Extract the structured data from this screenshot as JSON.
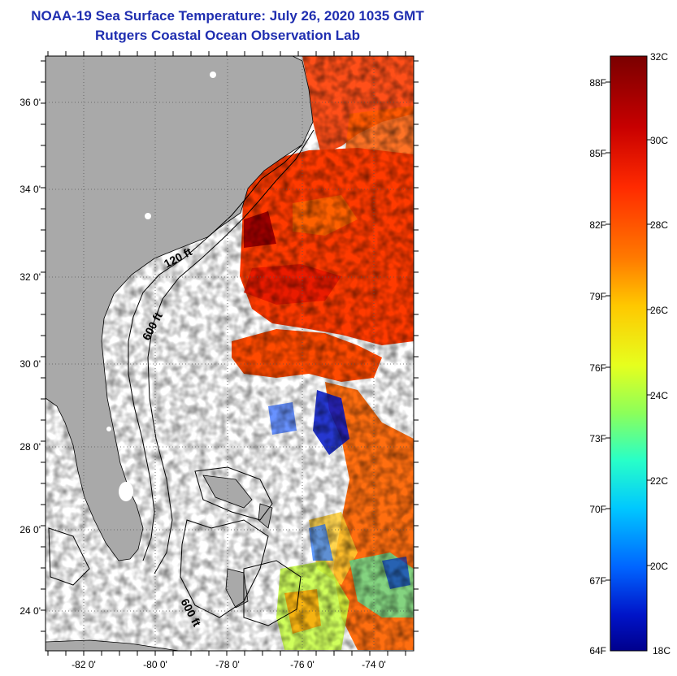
{
  "title": {
    "line1": "NOAA-19 Sea Surface Temperature:  July 26, 2020 1035 GMT",
    "line2": "Rutgers Coastal Ocean Observation Lab"
  },
  "map": {
    "lat_labels": [
      "36 0'",
      "34 0'",
      "32 0'",
      "30 0'",
      "28 0'",
      "26 0'",
      "24 0'"
    ],
    "lon_labels": [
      "-82 0'",
      "-80 0'",
      "-78 0'",
      "-76 0'",
      "-74 0'"
    ],
    "contour_labels": [
      "120 ft",
      "600 ft",
      "600 ft"
    ],
    "land_color": "#a9a9a9",
    "no_data_color": "#ffffff"
  },
  "colorbar": {
    "celsius_labels": [
      "32C",
      "30C",
      "28C",
      "26C",
      "24C",
      "22C",
      "20C",
      "18C"
    ],
    "fahrenheit_labels": [
      "88F",
      "85F",
      "82F",
      "79F",
      "76F",
      "73F",
      "70F",
      "67F",
      "64F"
    ],
    "colors": [
      "#7a0000",
      "#c80000",
      "#ff2a00",
      "#ff7a00",
      "#ffc800",
      "#e6ff1e",
      "#8cff5a",
      "#28ffc8",
      "#00c8ff",
      "#0064ff",
      "#0014c8",
      "#00008c"
    ]
  }
}
